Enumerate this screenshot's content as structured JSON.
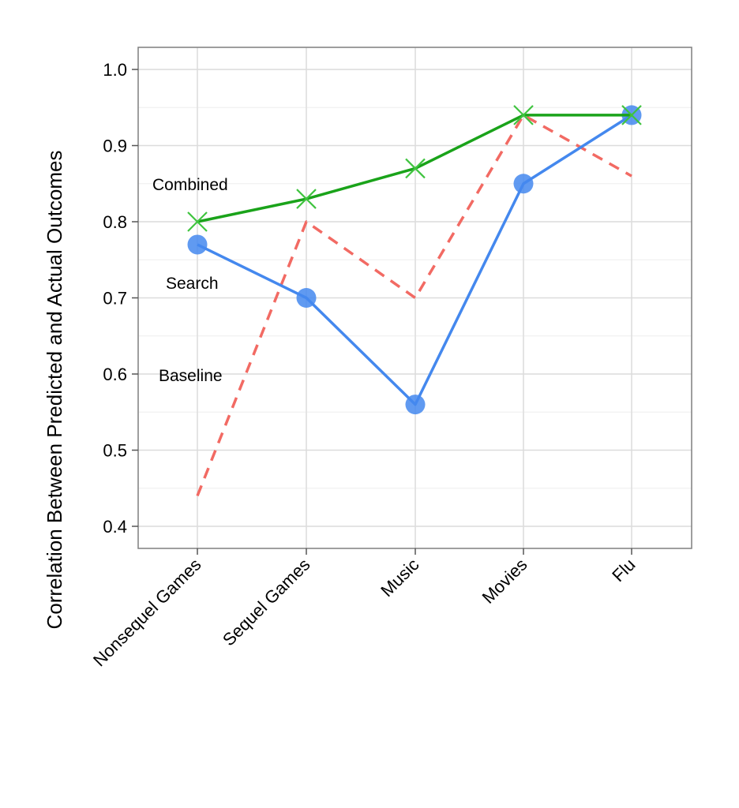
{
  "chart_data": {
    "type": "line",
    "ylabel": "Correlation Between Predicted and Actual Outcomes",
    "categories": [
      "Nonsequel Games",
      "Sequel Games",
      "Music",
      "Movies",
      "Flu"
    ],
    "ylim": [
      0.37,
      1.03
    ],
    "yticks": [
      "0.4",
      "0.5",
      "0.6",
      "0.7",
      "0.8",
      "0.9",
      "1.0"
    ],
    "grid": true,
    "legend": "direct labels at left",
    "series": [
      {
        "name": "Combined",
        "values": [
          0.8,
          0.83,
          0.87,
          0.94,
          0.94
        ],
        "color": "#1aa31a",
        "marker": "x",
        "dash": "solid"
      },
      {
        "name": "Search",
        "values": [
          0.77,
          0.7,
          0.56,
          0.85,
          0.94
        ],
        "color": "#4488ee",
        "marker": "circle",
        "dash": "solid"
      },
      {
        "name": "Baseline",
        "values": [
          0.44,
          0.8,
          0.7,
          0.94,
          0.86
        ],
        "color": "#f26a63",
        "marker": "none",
        "dash": "dashed"
      }
    ]
  }
}
